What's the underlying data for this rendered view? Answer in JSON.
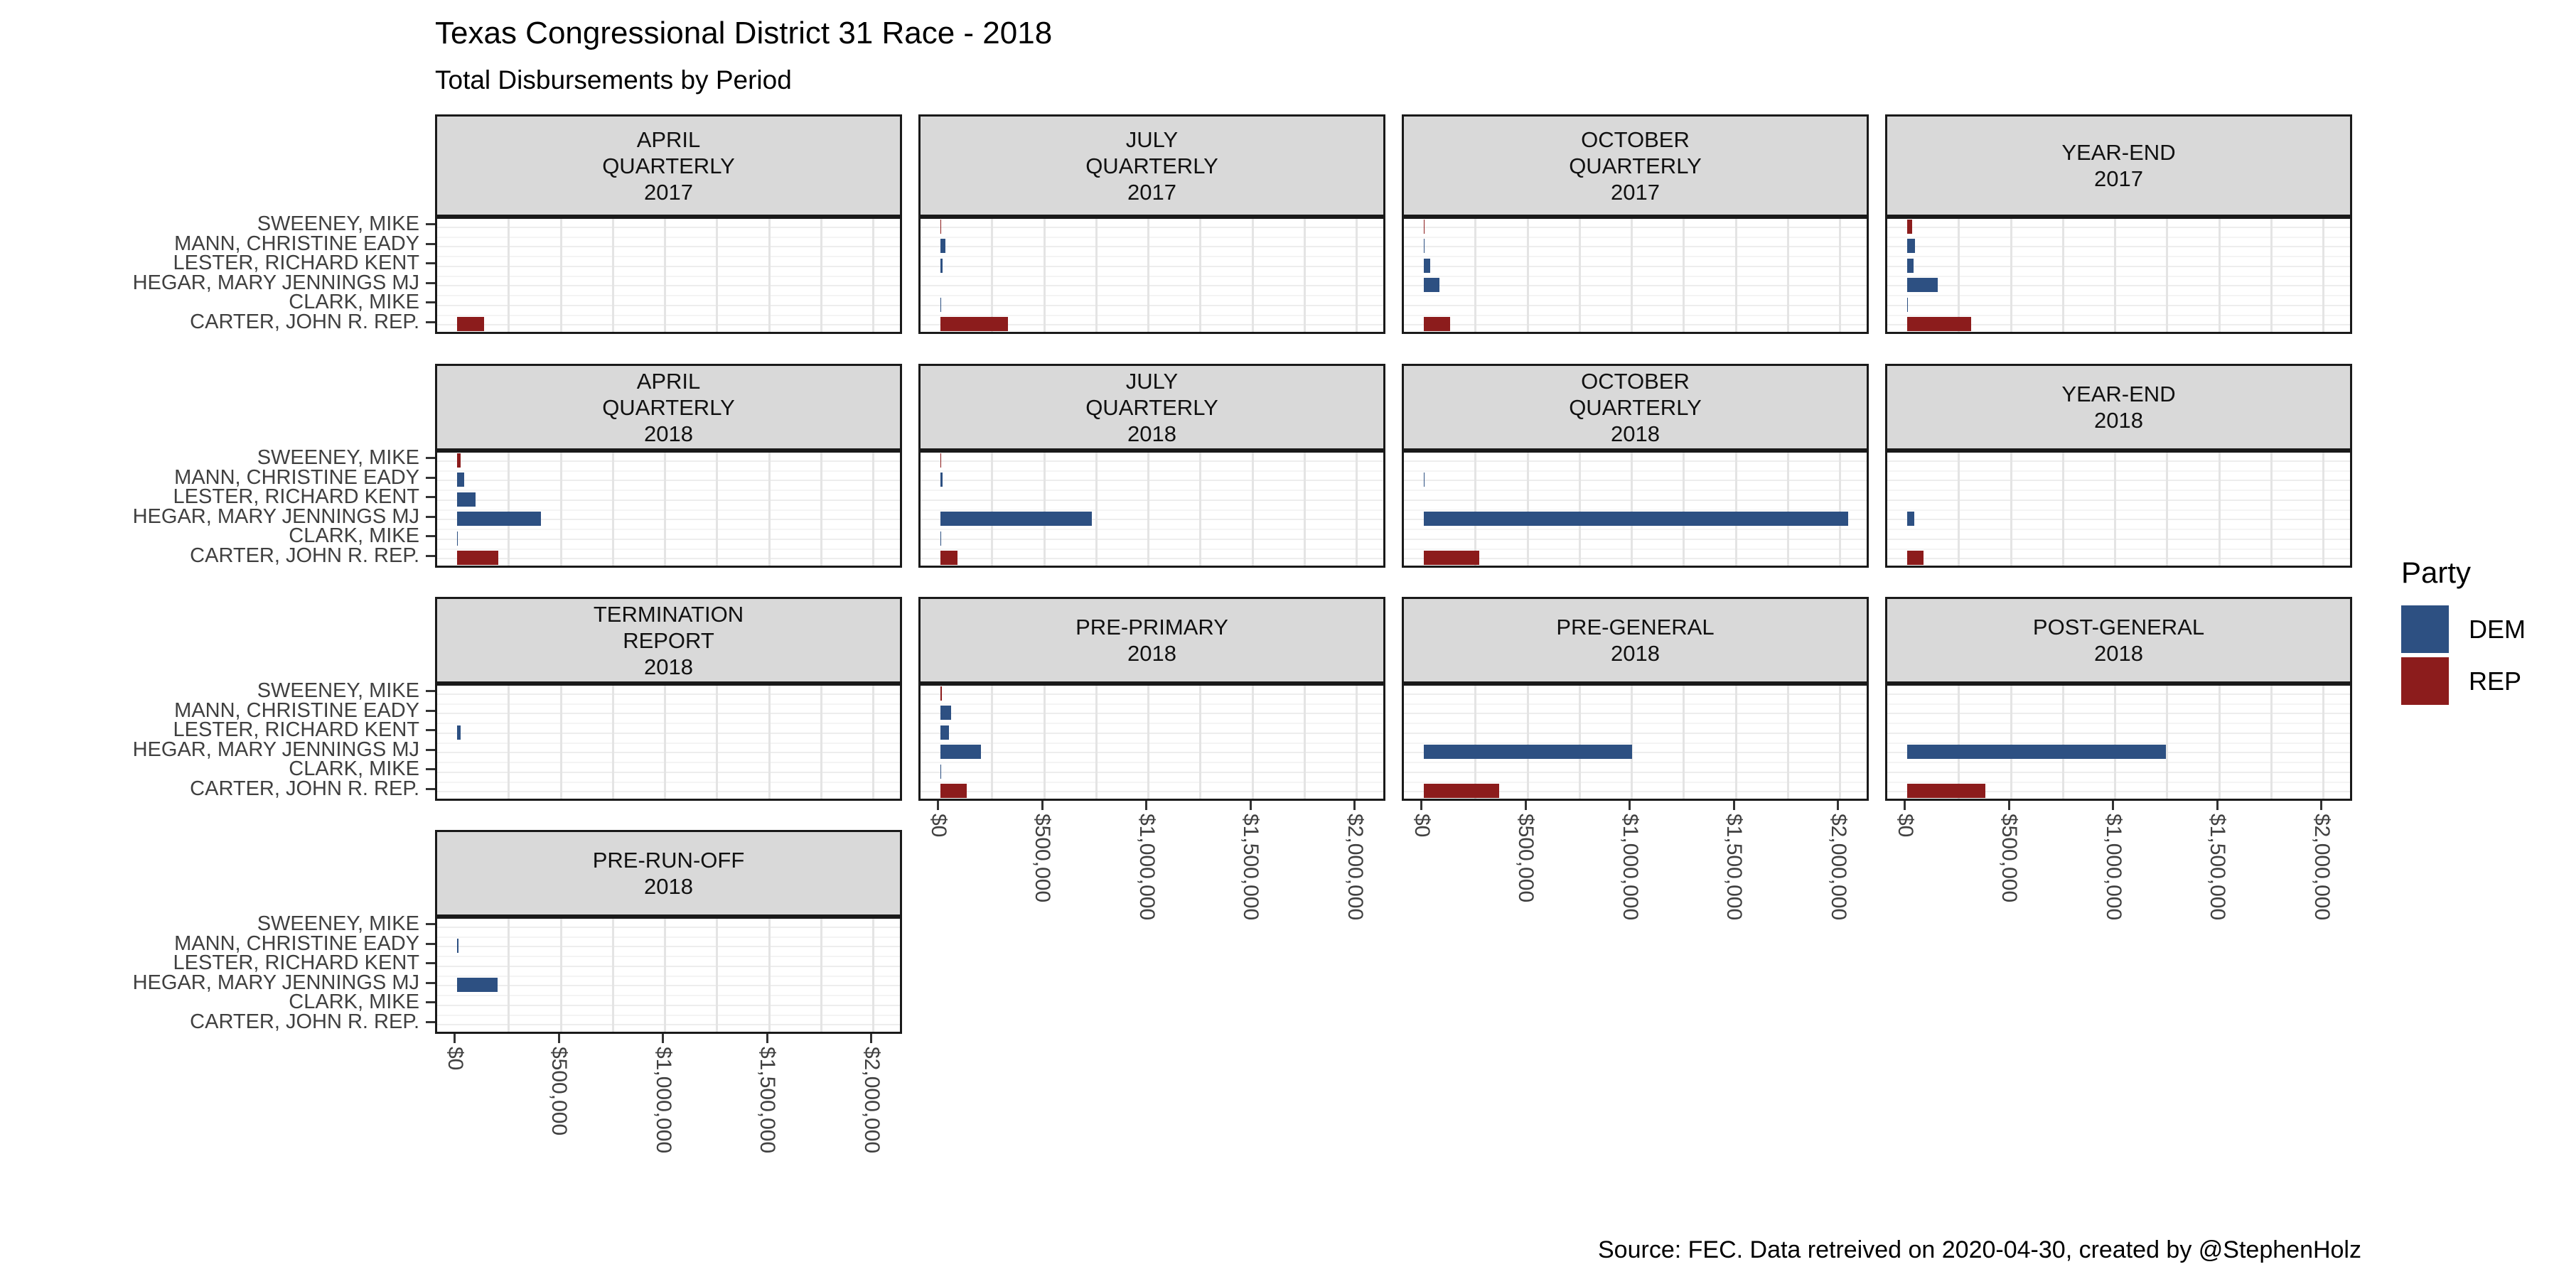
{
  "title": "Texas Congressional District 31 Race - 2018",
  "subtitle": "Total Disbursements by Period",
  "caption": "Source: FEC. Data retreived on 2020-04-30, created by @StephenHolz",
  "legend": {
    "title": "Party",
    "entries": [
      {
        "label": "DEM",
        "color": "#2D5082"
      },
      {
        "label": "REP",
        "color": "#8C1C1C"
      }
    ]
  },
  "chart_data": {
    "type": "bar",
    "orientation": "horizontal",
    "title": "Texas Congressional District 31 Race - 2018",
    "subtitle": "Total Disbursements by Period",
    "legend_position": "right",
    "grid": true,
    "party_colors": {
      "DEM": "#2D5082",
      "REP": "#8C1C1C"
    },
    "candidates": [
      {
        "name": "SWEENEY, MIKE",
        "party": "REP"
      },
      {
        "name": "MANN, CHRISTINE EADY",
        "party": "DEM"
      },
      {
        "name": "LESTER, RICHARD KENT",
        "party": "DEM"
      },
      {
        "name": "HEGAR, MARY JENNINGS MJ",
        "party": "DEM"
      },
      {
        "name": "CLARK, MIKE",
        "party": "DEM"
      },
      {
        "name": "CARTER, JOHN R. REP.",
        "party": "REP"
      }
    ],
    "x_axis": {
      "tick_labels": [
        "$0",
        "$500,000",
        "$1,000,000",
        "$1,500,000",
        "$2,000,000"
      ],
      "tick_values": [
        0,
        500000,
        1000000,
        1500000,
        2000000
      ],
      "max": 2000000,
      "gridline_step": 250000,
      "label_rotation_deg": -90
    },
    "facets": [
      {
        "period": "APRIL QUARTERLY 2017",
        "label_lines": [
          "APRIL",
          "QUARTERLY",
          "2017"
        ],
        "values": [
          0,
          0,
          0,
          0,
          0,
          130000
        ]
      },
      {
        "period": "JULY QUARTERLY 2017",
        "label_lines": [
          "JULY",
          "QUARTERLY",
          "2017"
        ],
        "values": [
          6000,
          27000,
          11000,
          0,
          6000,
          325000
        ]
      },
      {
        "period": "OCTOBER QUARTERLY 2017",
        "label_lines": [
          "OCTOBER",
          "QUARTERLY",
          "2017"
        ],
        "values": [
          5000,
          6000,
          31000,
          76000,
          0,
          127000
        ]
      },
      {
        "period": "YEAR-END 2017",
        "label_lines": [
          "YEAR-END",
          "2017"
        ],
        "values": [
          26000,
          38000,
          31000,
          148000,
          3000,
          308000
        ]
      },
      {
        "period": "APRIL QUARTERLY 2018",
        "label_lines": [
          "APRIL",
          "QUARTERLY",
          "2018"
        ],
        "values": [
          20000,
          35000,
          92000,
          405000,
          5000,
          200000
        ]
      },
      {
        "period": "JULY QUARTERLY 2018",
        "label_lines": [
          "JULY",
          "QUARTERLY",
          "2018"
        ],
        "values": [
          3000,
          12000,
          0,
          730000,
          3000,
          84000
        ]
      },
      {
        "period": "OCTOBER QUARTERLY 2018",
        "label_lines": [
          "OCTOBER",
          "QUARTERLY",
          "2018"
        ],
        "values": [
          0,
          5000,
          0,
          2040000,
          0,
          267000
        ]
      },
      {
        "period": "YEAR-END 2018",
        "label_lines": [
          "YEAR-END",
          "2018"
        ],
        "values": [
          0,
          0,
          0,
          35000,
          0,
          81000
        ]
      },
      {
        "period": "TERMINATION REPORT 2018",
        "label_lines": [
          "TERMINATION",
          "REPORT",
          "2018"
        ],
        "values": [
          0,
          0,
          20000,
          0,
          0,
          0
        ]
      },
      {
        "period": "PRE-PRIMARY 2018",
        "label_lines": [
          "PRE-PRIMARY",
          "2018"
        ],
        "values": [
          8000,
          53000,
          43000,
          195000,
          3000,
          127000
        ]
      },
      {
        "period": "PRE-GENERAL 2018",
        "label_lines": [
          "PRE-GENERAL",
          "2018"
        ],
        "values": [
          0,
          0,
          0,
          1000000,
          0,
          362000
        ]
      },
      {
        "period": "POST-GENERAL 2018",
        "label_lines": [
          "POST-GENERAL",
          "2018"
        ],
        "values": [
          0,
          0,
          0,
          1245000,
          0,
          377000
        ]
      },
      {
        "period": "PRE-RUN-OFF 2018",
        "label_lines": [
          "PRE-RUN-OFF",
          "2018"
        ],
        "values": [
          0,
          8000,
          0,
          195000,
          0,
          0
        ]
      }
    ]
  }
}
